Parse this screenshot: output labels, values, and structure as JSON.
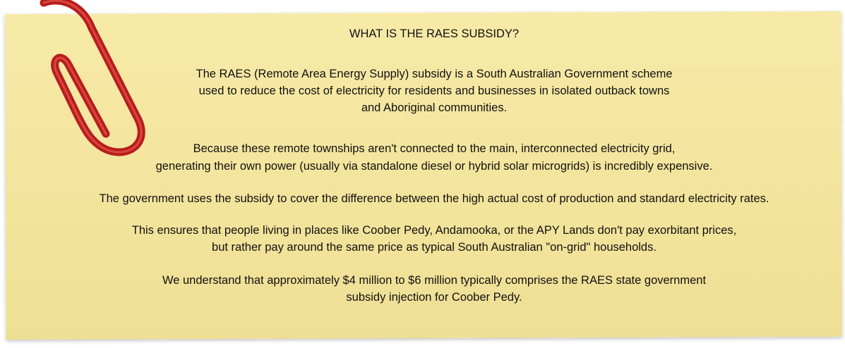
{
  "title": "WHAT IS THE RAES SUBSIDY?",
  "paragraphs": [
    [
      "The RAES (Remote Area Energy Supply) subsidy is a South Australian Government scheme",
      "used to reduce the cost of electricity for residents and businesses in isolated outback towns",
      "and Aboriginal communities."
    ],
    [
      "Because these remote townships aren't connected to the main, interconnected electricity grid,",
      "generating their own power (usually via standalone diesel or hybrid solar microgrids) is incredibly expensive."
    ],
    [
      "The government uses the subsidy to cover the difference between the high actual cost of production and standard electricity rates."
    ],
    [
      "This ensures that people living in places like Coober Pedy, Andamooka, or the APY Lands don't pay  exorbitant prices,",
      "but rather pay around the same price as typical South Australian \"on-grid\" households."
    ],
    [
      "We understand that approximately $4 million to $6 million typically comprises the RAES state government",
      "subsidy injection for Coober Pedy."
    ]
  ]
}
